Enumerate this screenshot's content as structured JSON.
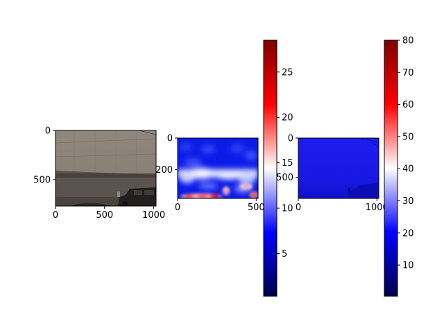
{
  "chart_data": [
    {
      "type": "image",
      "content": "photo of a concrete building wall with a parked dark car",
      "x_ticks": [
        0,
        500,
        1000
      ],
      "x_tick_labels": [
        "0",
        "500",
        "1000"
      ],
      "x_range": [
        0,
        1024
      ],
      "y_ticks": [
        0,
        500
      ],
      "y_tick_labels": [
        "0",
        "500"
      ],
      "y_range": [
        768,
        0
      ],
      "colors": {
        "wall": "#8d857c",
        "ground": "#5a524c",
        "car": "#22201f"
      }
    },
    {
      "type": "heatmap",
      "colormap": "seismic",
      "x_ticks": [
        0,
        500
      ],
      "x_tick_labels": [
        "0",
        "500"
      ],
      "x_range": [
        0,
        512
      ],
      "y_ticks": [
        0,
        200
      ],
      "y_tick_labels": [
        "0",
        "200"
      ],
      "y_range": [
        384,
        0
      ],
      "colorbar": {
        "ticks": [
          5,
          10,
          15,
          20,
          25
        ],
        "tick_labels": [
          "5",
          "10",
          "15",
          "20",
          "25"
        ],
        "range": [
          0.3,
          28.5
        ]
      }
    },
    {
      "type": "heatmap",
      "colormap": "seismic",
      "x_ticks": [
        0,
        1000
      ],
      "x_tick_labels": [
        "0",
        "1000"
      ],
      "x_range": [
        0,
        1024
      ],
      "y_ticks": [
        0,
        500
      ],
      "y_tick_labels": [
        "0",
        "500"
      ],
      "y_range": [
        768,
        0
      ],
      "colorbar": {
        "ticks": [
          10,
          20,
          30,
          40,
          50,
          60,
          70,
          80
        ],
        "tick_labels": [
          "10",
          "20",
          "30",
          "40",
          "50",
          "60",
          "70",
          "80"
        ],
        "range": [
          0.3,
          80
        ]
      }
    }
  ],
  "colors": {
    "cmap_dark_blue": "#00004c",
    "cmap_blue": "#0000ff",
    "cmap_white": "#ffffff",
    "cmap_red": "#ff0000",
    "cmap_dark_red": "#800000"
  }
}
